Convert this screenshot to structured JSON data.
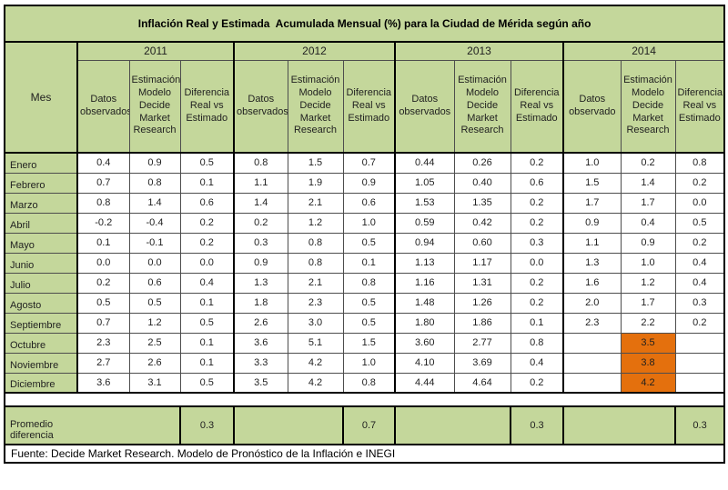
{
  "title": "Inflación Real y Estimada  Acumulada Mensual (%) para la Ciudad de Mérida según año",
  "header": {
    "mes": "Mes",
    "years": [
      {
        "label": "2011",
        "cols": [
          "Datos observados",
          "Estimación Modelo Decide Market Research",
          "Diferencia Real vs Estimado"
        ]
      },
      {
        "label": "2012",
        "cols": [
          "Datos observados",
          "Estimación Modelo Decide Market Research",
          "Diferencia Real vs Estimado"
        ]
      },
      {
        "label": "2013",
        "cols": [
          "Datos observados",
          "Estimación Modelo Decide Market Research",
          "Diferencia Real vs Estimado"
        ]
      },
      {
        "label": "2014",
        "cols": [
          "Datos observado",
          "Estimación Modelo Decide Market Research",
          "Diferencia Real vs Estimado"
        ]
      }
    ]
  },
  "rows": [
    {
      "mes": "Enero",
      "values": [
        "0.4",
        "0.9",
        "0.5",
        "0.8",
        "1.5",
        "0.7",
        "0.44",
        "0.26",
        "0.2",
        "1.0",
        "0.2",
        "0.8"
      ],
      "highlight": []
    },
    {
      "mes": "Febrero",
      "values": [
        "0.7",
        "0.8",
        "0.1",
        "1.1",
        "1.9",
        "0.9",
        "1.05",
        "0.40",
        "0.6",
        "1.5",
        "1.4",
        "0.2"
      ],
      "highlight": []
    },
    {
      "mes": "Marzo",
      "values": [
        "0.8",
        "1.4",
        "0.6",
        "1.4",
        "2.1",
        "0.6",
        "1.53",
        "1.35",
        "0.2",
        "1.7",
        "1.7",
        "0.0"
      ],
      "highlight": []
    },
    {
      "mes": "Abril",
      "values": [
        "-0.2",
        "-0.4",
        "0.2",
        "0.2",
        "1.2",
        "1.0",
        "0.59",
        "0.42",
        "0.2",
        "0.9",
        "0.4",
        "0.5"
      ],
      "highlight": []
    },
    {
      "mes": "Mayo",
      "values": [
        "0.1",
        "-0.1",
        "0.2",
        "0.3",
        "0.8",
        "0.5",
        "0.94",
        "0.60",
        "0.3",
        "1.1",
        "0.9",
        "0.2"
      ],
      "highlight": []
    },
    {
      "mes": "Junio",
      "values": [
        "0.0",
        "0.0",
        "0.0",
        "0.9",
        "0.8",
        "0.1",
        "1.13",
        "1.17",
        "0.0",
        "1.3",
        "1.0",
        "0.4"
      ],
      "highlight": []
    },
    {
      "mes": "Julio",
      "values": [
        "0.2",
        "0.6",
        "0.4",
        "1.3",
        "2.1",
        "0.8",
        "1.16",
        "1.31",
        "0.2",
        "1.6",
        "1.2",
        "0.4"
      ],
      "highlight": []
    },
    {
      "mes": "Agosto",
      "values": [
        "0.5",
        "0.5",
        "0.1",
        "1.8",
        "2.3",
        "0.5",
        "1.48",
        "1.26",
        "0.2",
        "2.0",
        "1.7",
        "0.3"
      ],
      "highlight": []
    },
    {
      "mes": "Septiembre",
      "values": [
        "0.7",
        "1.2",
        "0.5",
        "2.6",
        "3.0",
        "0.5",
        "1.80",
        "1.86",
        "0.1",
        "2.3",
        "2.2",
        "0.2"
      ],
      "highlight": []
    },
    {
      "mes": "Octubre",
      "values": [
        "2.3",
        "2.5",
        "0.1",
        "3.6",
        "5.1",
        "1.5",
        "3.60",
        "2.77",
        "0.8",
        "",
        "3.5",
        ""
      ],
      "highlight": [
        10
      ]
    },
    {
      "mes": "Noviembre",
      "values": [
        "2.7",
        "2.6",
        "0.1",
        "3.3",
        "4.2",
        "1.0",
        "4.10",
        "3.69",
        "0.4",
        "",
        "3.8",
        ""
      ],
      "highlight": [
        10
      ]
    },
    {
      "mes": "Diciembre",
      "values": [
        "3.6",
        "3.1",
        "0.5",
        "3.5",
        "4.2",
        "0.8",
        "4.44",
        "4.64",
        "0.2",
        "",
        "4.2",
        ""
      ],
      "highlight": [
        10
      ]
    }
  ],
  "promedio": {
    "label": "Promedio\ndiferencia",
    "values": [
      "0.3",
      "0.7",
      "0.3",
      "0.3"
    ]
  },
  "footer": "Fuente: Decide Market Research. Modelo de Pronóstico de la Inflación e INEGI",
  "colors": {
    "table_green": "#c4d79b",
    "highlight_orange": "#e4700d",
    "border_black": "#000000"
  }
}
